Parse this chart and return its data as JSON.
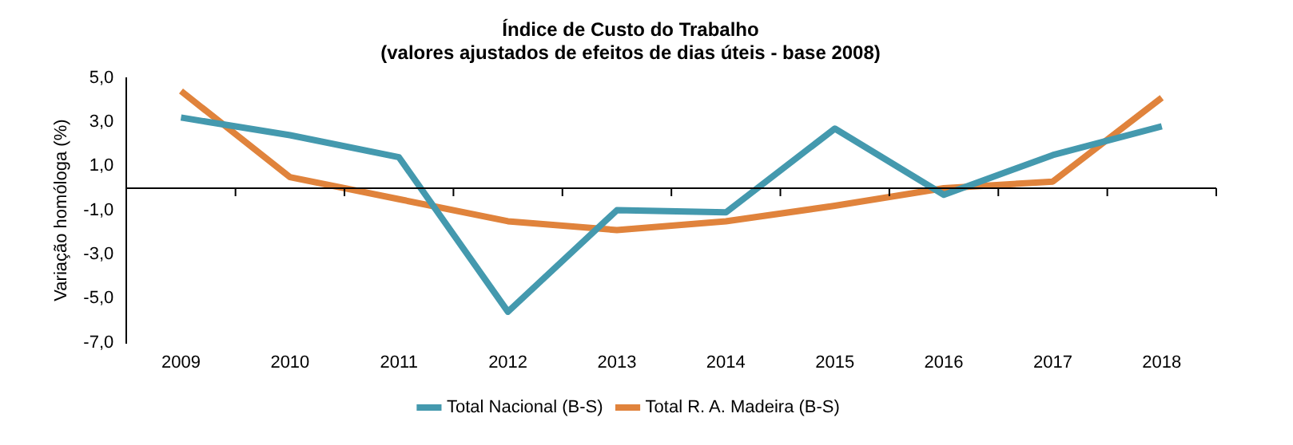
{
  "chart_data": {
    "type": "line",
    "title": "Índice de Custo do Trabalho",
    "subtitle": "(valores ajustados de efeitos de dias úteis - base 2008)",
    "ylabel": "Variação homóloga (%)",
    "categories": [
      "2009",
      "2010",
      "2011",
      "2012",
      "2013",
      "2014",
      "2015",
      "2016",
      "2017",
      "2018"
    ],
    "series": [
      {
        "name": "Total Nacional (B-S)",
        "color": "#4499ae",
        "values": [
          3.2,
          2.4,
          1.4,
          -5.6,
          -1.0,
          -1.1,
          2.7,
          -0.3,
          1.5,
          2.8
        ]
      },
      {
        "name": "Total R. A. Madeira (B-S)",
        "color": "#e0833c",
        "values": [
          4.4,
          0.5,
          -0.5,
          -1.5,
          -1.9,
          -1.5,
          -0.8,
          0.0,
          0.3,
          4.1
        ]
      }
    ],
    "ylim": [
      -7,
      5
    ],
    "yticks": [
      {
        "value": -7,
        "label": "-7,0"
      },
      {
        "value": -5,
        "label": "-5,0"
      },
      {
        "value": -3,
        "label": "-3,0"
      },
      {
        "value": -1,
        "label": "-1,0"
      },
      {
        "value": 1,
        "label": "1,0"
      },
      {
        "value": 3,
        "label": "3,0"
      },
      {
        "value": 5,
        "label": "5,0"
      }
    ],
    "grid": false,
    "legend": "bottom",
    "marker": "none",
    "line_style": "solid"
  }
}
